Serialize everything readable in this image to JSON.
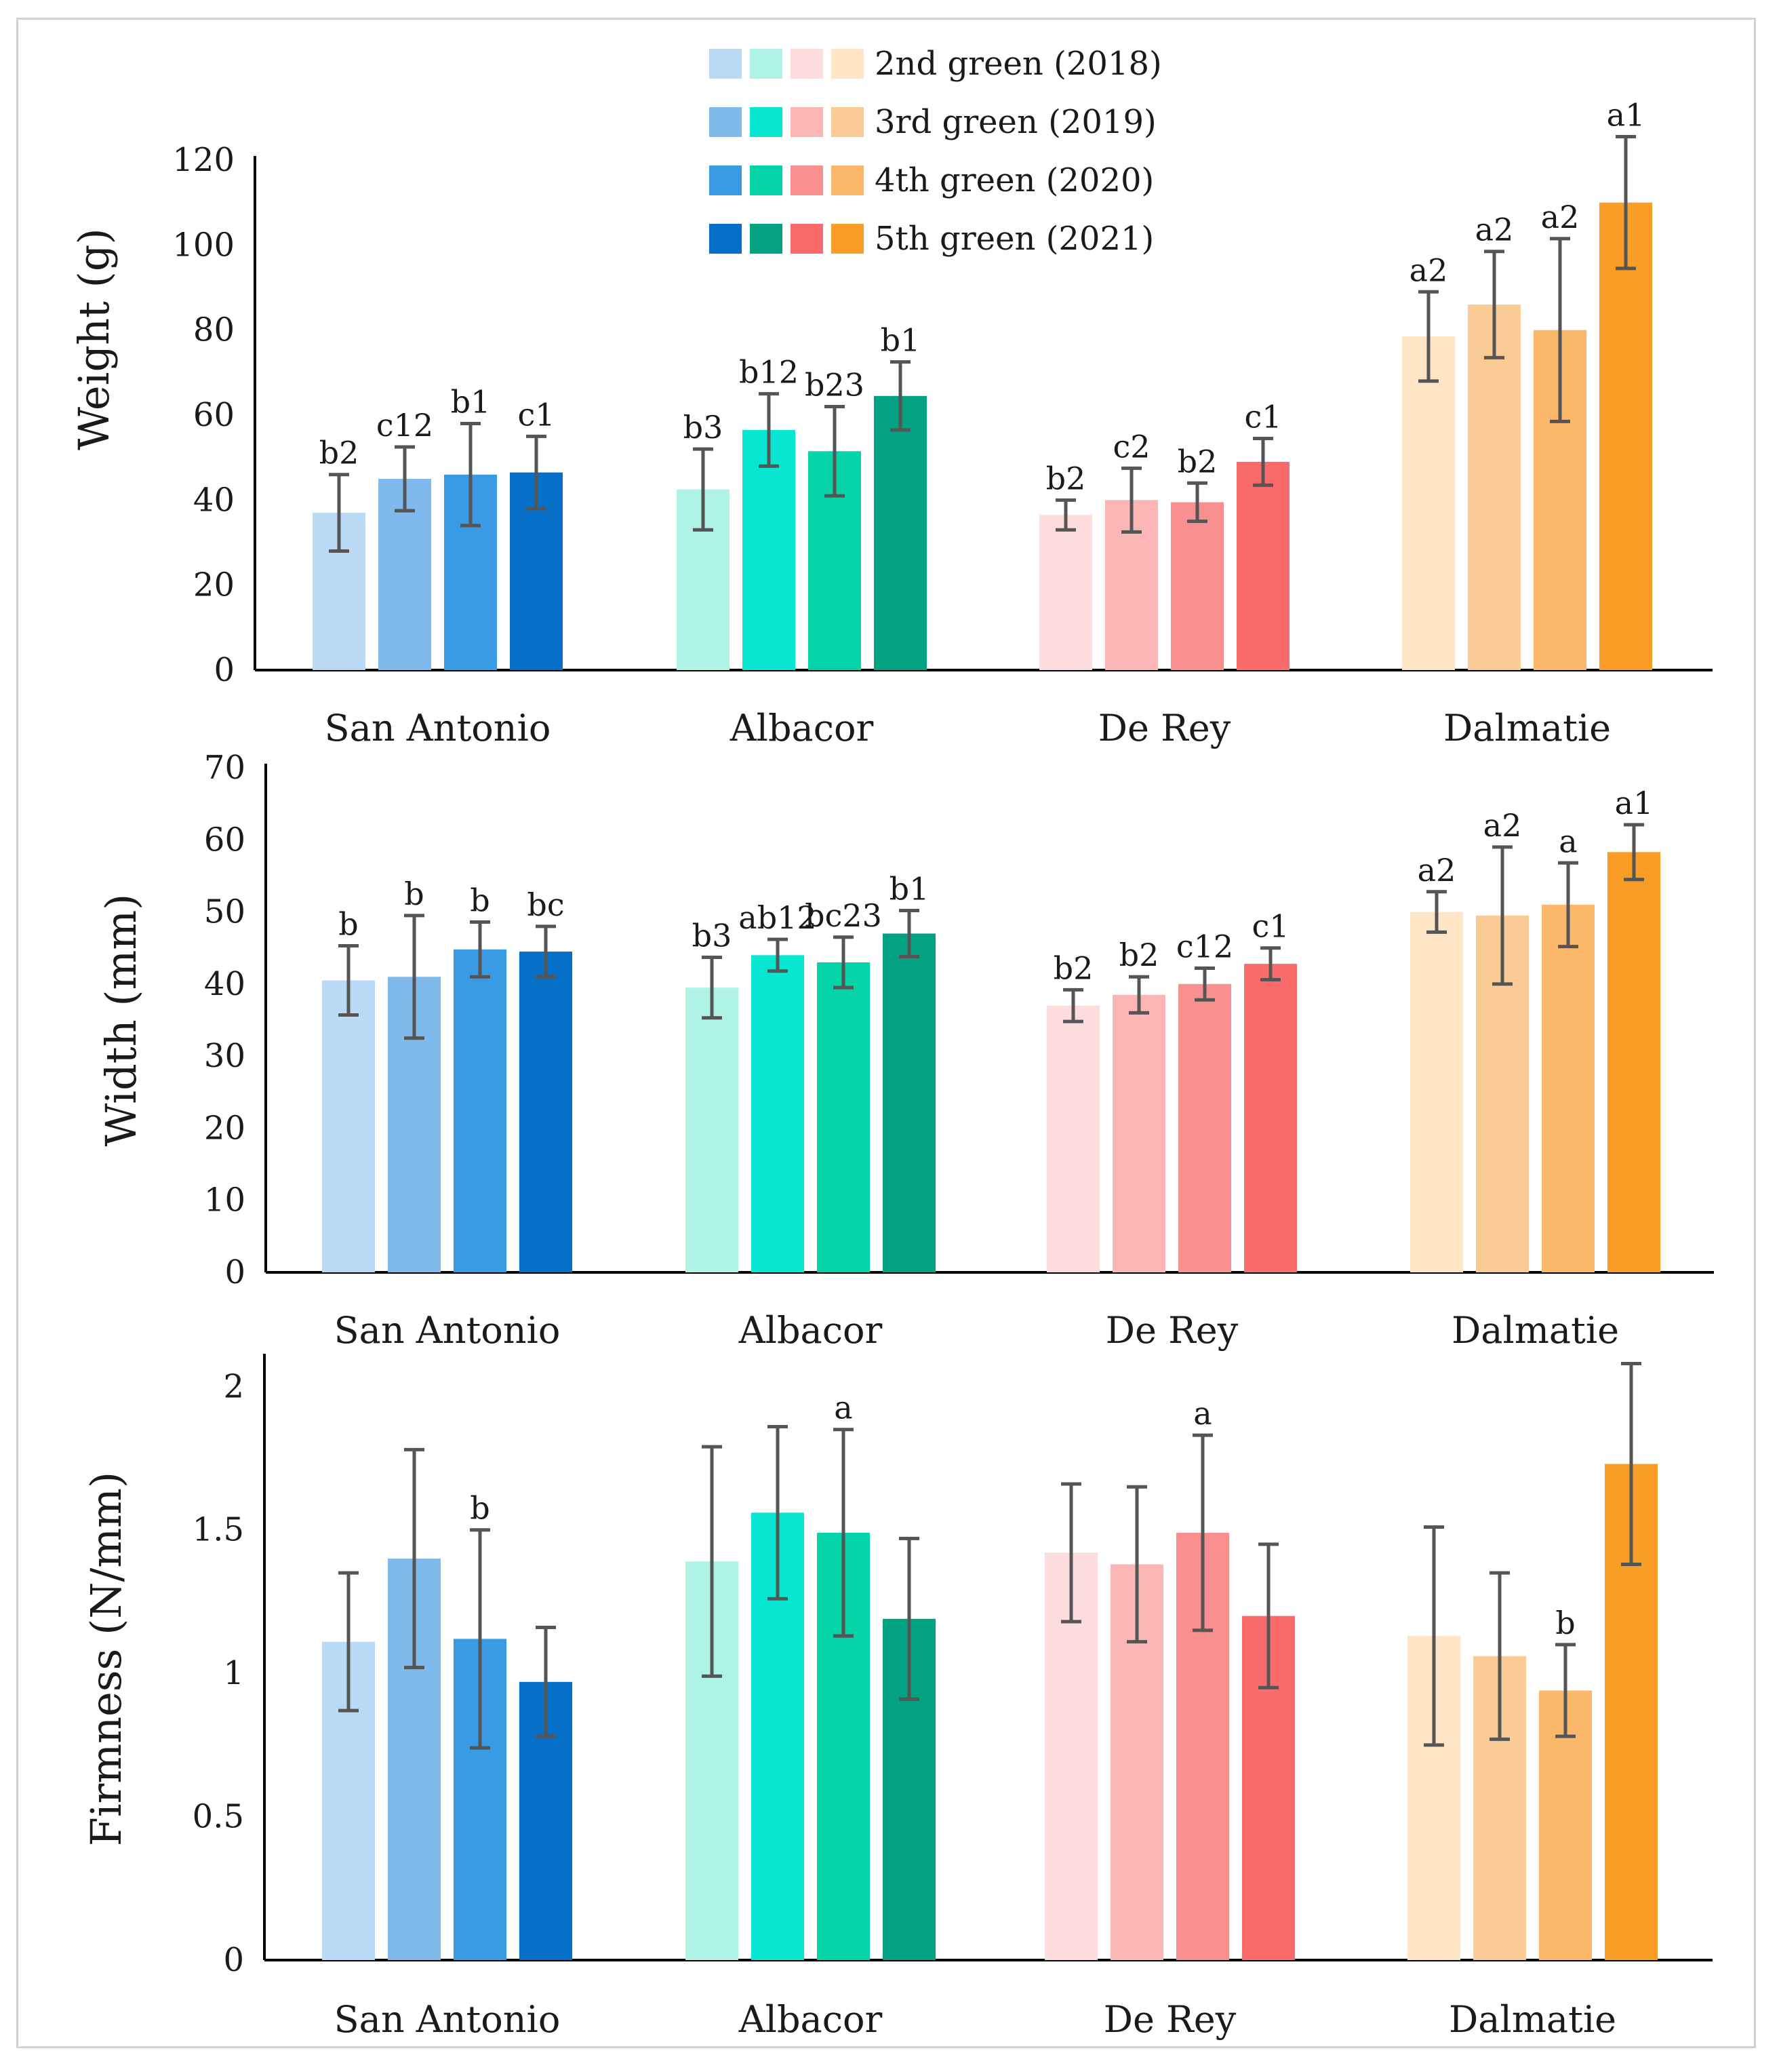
{
  "chart_data": [
    {
      "type": "bar",
      "title": "",
      "xlabel": "",
      "ylabel": "Weight (g)",
      "ylim": [
        0,
        120
      ],
      "yticks": [
        "0",
        "20",
        "40",
        "60",
        "80",
        "100",
        "120"
      ],
      "categories": [
        "San Antonio",
        "Albacor",
        "De Rey",
        "Dalmatie"
      ],
      "series": [
        {
          "name": "2nd green (2018)",
          "values": [
            37,
            42.5,
            36.5,
            78.5
          ],
          "errors": [
            9,
            9.5,
            3.5,
            10.5
          ],
          "labels": [
            "b2",
            "b3",
            "b2",
            "a2"
          ]
        },
        {
          "name": "3rd green (2019)",
          "values": [
            45,
            56.5,
            40,
            86
          ],
          "errors": [
            7.5,
            8.5,
            7.5,
            12.5
          ],
          "labels": [
            "c12",
            "b12",
            "c2",
            "a2"
          ]
        },
        {
          "name": "4th green (2020)",
          "values": [
            46,
            51.5,
            39.5,
            80
          ],
          "errors": [
            12,
            10.5,
            4.5,
            21.5
          ],
          "labels": [
            "b1",
            "b23",
            "b2",
            "a2"
          ]
        },
        {
          "name": "5th green (2021)",
          "values": [
            46.5,
            64.5,
            49,
            110
          ],
          "errors": [
            8.5,
            8,
            5.5,
            15.5
          ],
          "labels": [
            "c1",
            "b1",
            "c1",
            "a1"
          ]
        }
      ]
    },
    {
      "type": "bar",
      "title": "",
      "xlabel": "",
      "ylabel": "Width (mm)",
      "ylim": [
        0,
        70
      ],
      "yticks": [
        "0",
        "10",
        "20",
        "30",
        "40",
        "50",
        "60",
        "70"
      ],
      "categories": [
        "San Antonio",
        "Albacor",
        "De Rey",
        "Dalmatie"
      ],
      "series": [
        {
          "name": "2nd green (2018)",
          "values": [
            40.5,
            39.5,
            37,
            50
          ],
          "errors": [
            4.8,
            4.2,
            2.2,
            2.8
          ],
          "labels": [
            "b",
            "b3",
            "b2",
            "a2"
          ]
        },
        {
          "name": "3rd green (2019)",
          "values": [
            41,
            44,
            38.5,
            49.5
          ],
          "errors": [
            8.5,
            2.2,
            2.5,
            9.5
          ],
          "labels": [
            "b",
            "ab12",
            "b2",
            "a2"
          ]
        },
        {
          "name": "4th green (2020)",
          "values": [
            44.8,
            43,
            40,
            51
          ],
          "errors": [
            3.8,
            3.5,
            2.2,
            5.8
          ],
          "labels": [
            "b",
            "bc23",
            "c12",
            "a"
          ]
        },
        {
          "name": "5th green (2021)",
          "values": [
            44.5,
            47,
            42.8,
            58.3
          ],
          "errors": [
            3.5,
            3.2,
            2.2,
            3.8
          ],
          "labels": [
            "bc",
            "b1",
            "c1",
            "a1"
          ]
        }
      ]
    },
    {
      "type": "bar",
      "title": "",
      "xlabel": "",
      "ylabel": "Firmness (N/mm)",
      "ylim": [
        0,
        2.1
      ],
      "yticks": [
        "0",
        "0.5",
        "1",
        "1.5",
        "2"
      ],
      "categories": [
        "San Antonio",
        "Albacor",
        "De Rey",
        "Dalmatie"
      ],
      "series": [
        {
          "name": "2nd green (2018)",
          "values": [
            1.11,
            1.39,
            1.42,
            1.13
          ],
          "errors": [
            0.24,
            0.4,
            0.24,
            0.38
          ],
          "labels": [
            "",
            "",
            "",
            ""
          ]
        },
        {
          "name": "3rd green (2019)",
          "values": [
            1.4,
            1.56,
            1.38,
            1.06
          ],
          "errors": [
            0.38,
            0.3,
            0.27,
            0.29
          ],
          "labels": [
            "",
            "",
            "",
            ""
          ]
        },
        {
          "name": "4th green (2020)",
          "values": [
            1.12,
            1.49,
            1.49,
            0.94
          ],
          "errors": [
            0.38,
            0.36,
            0.34,
            0.16
          ],
          "labels": [
            "b",
            "a",
            "a",
            "b"
          ]
        },
        {
          "name": "5th green (2021)",
          "values": [
            0.97,
            1.19,
            1.2,
            1.73
          ],
          "errors": [
            0.19,
            0.28,
            0.25,
            0.35
          ],
          "labels": [
            "",
            "",
            "",
            ""
          ]
        }
      ]
    }
  ],
  "legend": {
    "entries": [
      "2nd green (2018)",
      "3rd green (2019)",
      "4th green (2020)",
      "5th green (2021)"
    ]
  },
  "colors": {
    "San Antonio": [
      "#b9d9f5",
      "#80b9ec",
      "#3a9be5",
      "#0670c9"
    ],
    "Albacor": [
      "#aef3e6",
      "#07e6d0",
      "#05d4a9",
      "#03a283"
    ],
    "De Rey": [
      "#fcdcdc",
      "#fcb6b6",
      "#f98f8f",
      "#fc6b6b"
    ],
    "Dalmatie": [
      "#fde5c6",
      "#fbcb96",
      "#fbb86a",
      "#f99d27"
    ],
    "error_bar": "#555555",
    "axis": "#000000"
  }
}
